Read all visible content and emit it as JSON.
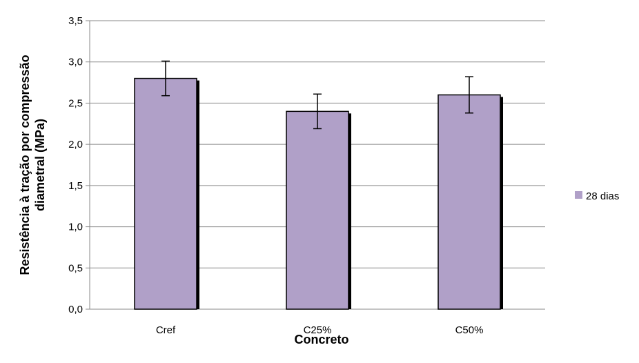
{
  "chart_data": {
    "type": "bar",
    "categories": [
      "Cref",
      "C25%",
      "C50%"
    ],
    "series": [
      {
        "name": "28 dias",
        "values": [
          2.8,
          2.4,
          2.6
        ],
        "error": [
          0.21,
          0.21,
          0.22
        ]
      }
    ],
    "xlabel": "Concreto",
    "ylabel": "Resistência à tração por compressão diametral (MPa)",
    "ylim": [
      0,
      3.5
    ],
    "ytick_step": 0.5,
    "yticks": [
      "0,0",
      "0,5",
      "1,0",
      "1,5",
      "2,0",
      "2,5",
      "3,0",
      "3,5"
    ],
    "grid": true,
    "legend": "right",
    "bar_color": "#b0a0c8"
  }
}
